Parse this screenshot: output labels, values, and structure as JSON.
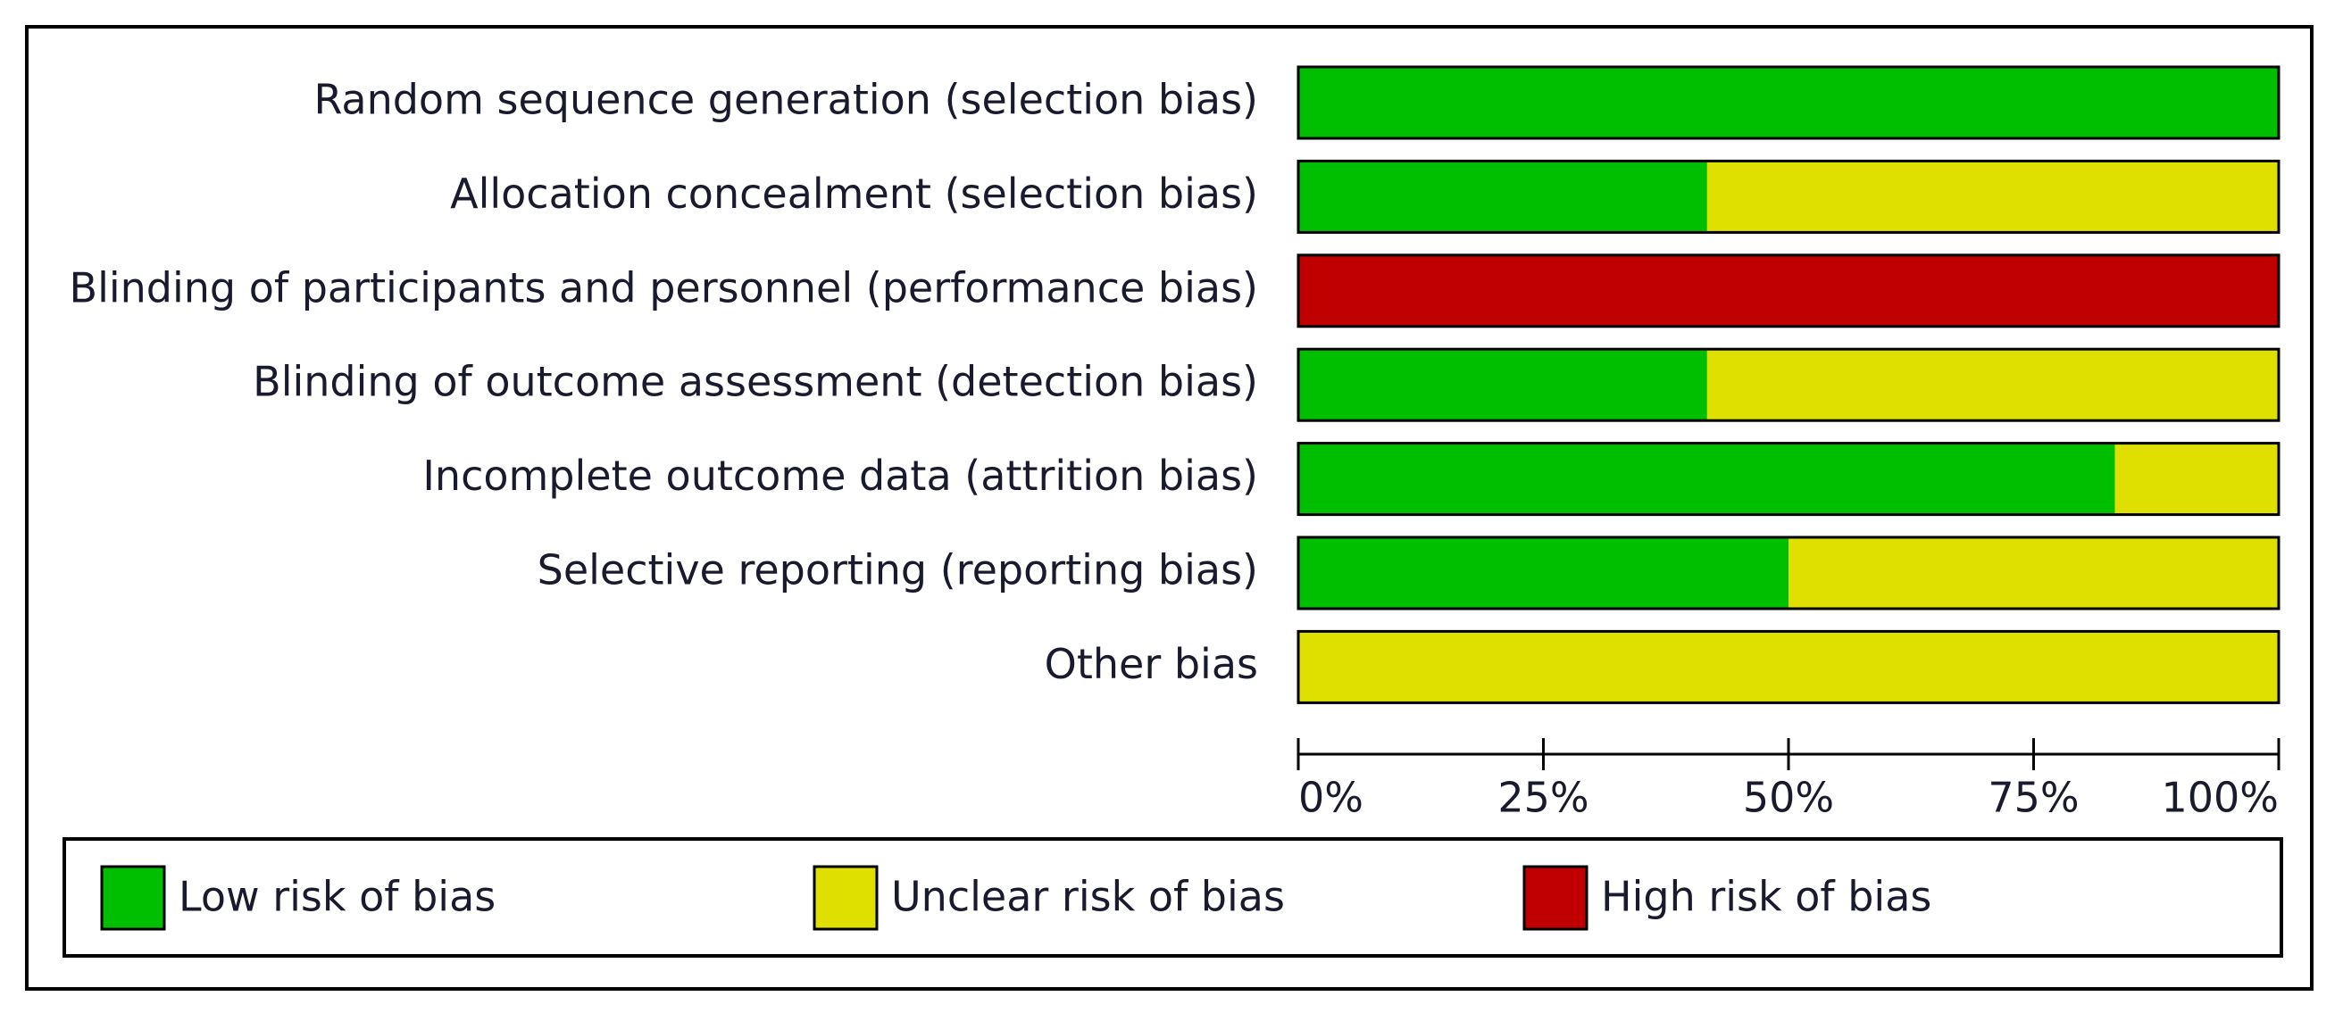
{
  "chart_data": {
    "type": "bar",
    "orientation": "horizontal",
    "stacked": true,
    "categories": [
      "Random sequence generation (selection bias)",
      "Allocation concealment (selection bias)",
      "Blinding of participants and personnel (performance bias)",
      "Blinding of outcome assessment (detection bias)",
      "Incomplete outcome data (attrition bias)",
      "Selective reporting (reporting bias)",
      "Other bias"
    ],
    "series": [
      {
        "name": "Low risk of bias",
        "color": "#00bf00",
        "values": [
          100,
          41.7,
          0,
          41.7,
          83.3,
          50,
          0
        ]
      },
      {
        "name": "Unclear risk of bias",
        "color": "#e0e000",
        "values": [
          0,
          58.3,
          0,
          58.3,
          16.7,
          50,
          100
        ]
      },
      {
        "name": "High risk of bias",
        "color": "#c00000",
        "values": [
          0,
          0,
          100,
          0,
          0,
          0,
          0
        ]
      }
    ],
    "xlim": [
      0,
      100
    ],
    "xticks": [
      {
        "value": 0,
        "label": "0%"
      },
      {
        "value": 25,
        "label": "25%"
      },
      {
        "value": 50,
        "label": "50%"
      },
      {
        "value": 75,
        "label": "75%"
      },
      {
        "value": 100,
        "label": "100%"
      }
    ],
    "legend": "bottom"
  }
}
